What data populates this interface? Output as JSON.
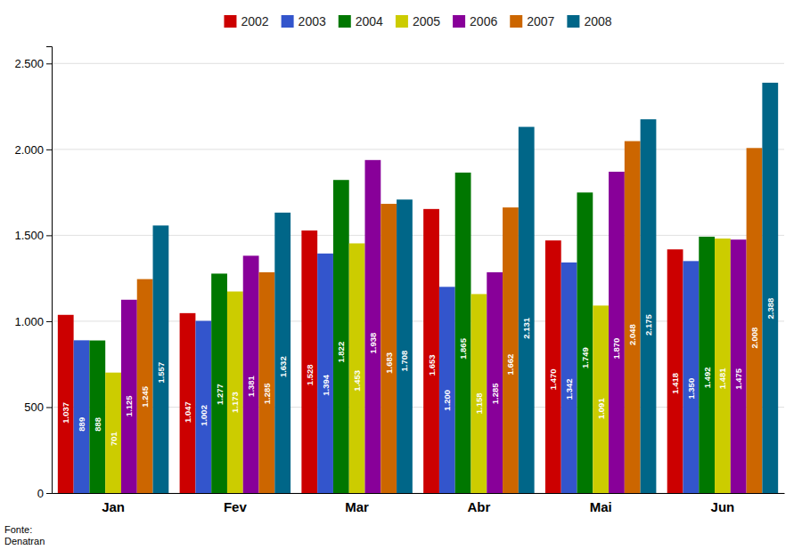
{
  "chart_data": {
    "type": "bar",
    "categories": [
      "Jan",
      "Fev",
      "Mar",
      "Abr",
      "Mai",
      "Jun"
    ],
    "series": [
      {
        "name": "2002",
        "color": "#CC0000",
        "values": [
          1037,
          1047,
          1528,
          1653,
          1470,
          1418
        ],
        "value_labels": [
          "1.037",
          "1.047",
          "1.528",
          "1.653",
          "1.470",
          "1.418"
        ]
      },
      {
        "name": "2003",
        "color": "#3355CC",
        "values": [
          889,
          1002,
          1394,
          1200,
          1342,
          1350
        ],
        "value_labels": [
          "889",
          "1.002",
          "1.394",
          "1.200",
          "1.342",
          "1.350"
        ]
      },
      {
        "name": "2004",
        "color": "#007700",
        "values": [
          888,
          1277,
          1822,
          1865,
          1749,
          1492
        ],
        "value_labels": [
          "888",
          "1.277",
          "1.822",
          "1.865",
          "1.749",
          "1.492"
        ]
      },
      {
        "name": "2005",
        "color": "#CCCC00",
        "values": [
          701,
          1173,
          1453,
          1158,
          1091,
          1481
        ],
        "value_labels": [
          "701",
          "1.173",
          "1.453",
          "1.158",
          "1.091",
          "1.481"
        ]
      },
      {
        "name": "2006",
        "color": "#880099",
        "values": [
          1125,
          1381,
          1938,
          1285,
          1870,
          1475
        ],
        "value_labels": [
          "1.125",
          "1.381",
          "1.938",
          "1.285",
          "1.870",
          "1.475"
        ]
      },
      {
        "name": "2007",
        "color": "#CC6600",
        "values": [
          1245,
          1285,
          1683,
          1662,
          2048,
          2008
        ],
        "value_labels": [
          "1.245",
          "1.285",
          "1.683",
          "1.662",
          "2.048",
          "2.008"
        ]
      },
      {
        "name": "2008",
        "color": "#006688",
        "values": [
          1557,
          1632,
          1708,
          2131,
          2175,
          2388
        ],
        "value_labels": [
          "1.557",
          "1.632",
          "1.708",
          "2.131",
          "2.175",
          "2.388"
        ]
      }
    ],
    "ylim": [
      0,
      2600
    ],
    "yticks": [
      0,
      500,
      {
        "value": 1000,
        "label": "1.000"
      },
      {
        "value": 1500,
        "label": "1.500"
      },
      {
        "value": 2000,
        "label": "2.000"
      },
      {
        "value": 2500,
        "label": "2.500"
      }
    ],
    "grid": true,
    "legend": "top",
    "data_labels": true,
    "annotations": [
      "Fonte:\nDenatran"
    ]
  }
}
